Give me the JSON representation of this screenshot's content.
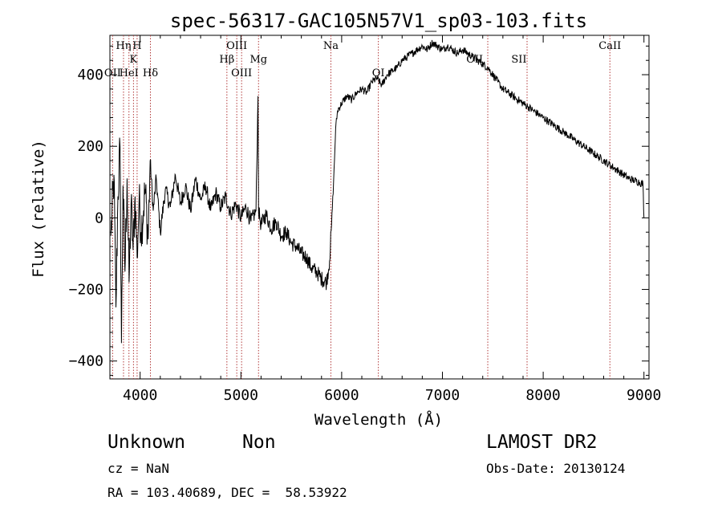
{
  "chart_data": {
    "type": "line",
    "title": "spec-56317-GAC105N57V1_sp03-103.fits",
    "xlabel": "Wavelength (Å)",
    "ylabel": "Flux (relative)",
    "xlim": [
      3700,
      9050
    ],
    "ylim": [
      -450,
      510
    ],
    "xticks": [
      4000,
      5000,
      6000,
      7000,
      8000,
      9000
    ],
    "yticks": [
      -400,
      -200,
      0,
      200,
      400
    ],
    "grid": false,
    "legend": "none",
    "series": [
      {
        "points": [
          [
            3710,
            -50
          ],
          [
            3740,
            120
          ],
          [
            3760,
            -250
          ],
          [
            3780,
            60
          ],
          [
            3800,
            200
          ],
          [
            3815,
            -350
          ],
          [
            3830,
            90
          ],
          [
            3850,
            -150
          ],
          [
            3870,
            110
          ],
          [
            3890,
            -180
          ],
          [
            3910,
            40
          ],
          [
            3930,
            -90
          ],
          [
            3950,
            60
          ],
          [
            3970,
            -110
          ],
          [
            3990,
            50
          ],
          [
            4010,
            -40
          ],
          [
            4050,
            80
          ],
          [
            4080,
            -60
          ],
          [
            4100,
            160
          ],
          [
            4130,
            20
          ],
          [
            4160,
            110
          ],
          [
            4200,
            -40
          ],
          [
            4250,
            80
          ],
          [
            4300,
            30
          ],
          [
            4350,
            120
          ],
          [
            4400,
            40
          ],
          [
            4450,
            90
          ],
          [
            4500,
            20
          ],
          [
            4550,
            110
          ],
          [
            4600,
            50
          ],
          [
            4650,
            90
          ],
          [
            4700,
            20
          ],
          [
            4750,
            70
          ],
          [
            4800,
            30
          ],
          [
            4850,
            60
          ],
          [
            4900,
            10
          ],
          [
            4950,
            40
          ],
          [
            5000,
            0
          ],
          [
            5050,
            30
          ],
          [
            5100,
            -10
          ],
          [
            5150,
            20
          ],
          [
            5170,
            340
          ],
          [
            5175,
            20
          ],
          [
            5200,
            -20
          ],
          [
            5250,
            10
          ],
          [
            5300,
            -30
          ],
          [
            5350,
            -10
          ],
          [
            5400,
            -50
          ],
          [
            5450,
            -40
          ],
          [
            5500,
            -70
          ],
          [
            5550,
            -80
          ],
          [
            5600,
            -100
          ],
          [
            5650,
            -110
          ],
          [
            5700,
            -140
          ],
          [
            5750,
            -150
          ],
          [
            5800,
            -170
          ],
          [
            5850,
            -180
          ],
          [
            5880,
            -120
          ],
          [
            5900,
            -20
          ],
          [
            5920,
            100
          ],
          [
            5940,
            250
          ],
          [
            5960,
            300
          ],
          [
            6000,
            320
          ],
          [
            6050,
            340
          ],
          [
            6100,
            330
          ],
          [
            6150,
            350
          ],
          [
            6200,
            360
          ],
          [
            6250,
            350
          ],
          [
            6300,
            380
          ],
          [
            6350,
            390
          ],
          [
            6400,
            370
          ],
          [
            6450,
            400
          ],
          [
            6500,
            410
          ],
          [
            6550,
            420
          ],
          [
            6600,
            440
          ],
          [
            6650,
            450
          ],
          [
            6700,
            460
          ],
          [
            6750,
            470
          ],
          [
            6800,
            480
          ],
          [
            6850,
            470
          ],
          [
            6900,
            490
          ],
          [
            6950,
            480
          ],
          [
            7000,
            470
          ],
          [
            7050,
            480
          ],
          [
            7100,
            470
          ],
          [
            7150,
            460
          ],
          [
            7200,
            470
          ],
          [
            7250,
            460
          ],
          [
            7300,
            450
          ],
          [
            7350,
            440
          ],
          [
            7400,
            430
          ],
          [
            7450,
            420
          ],
          [
            7500,
            400
          ],
          [
            7550,
            380
          ],
          [
            7600,
            360
          ],
          [
            7650,
            350
          ],
          [
            7700,
            340
          ],
          [
            7750,
            330
          ],
          [
            7800,
            320
          ],
          [
            7850,
            310
          ],
          [
            7900,
            300
          ],
          [
            7950,
            290
          ],
          [
            8000,
            280
          ],
          [
            8050,
            270
          ],
          [
            8100,
            260
          ],
          [
            8150,
            250
          ],
          [
            8200,
            240
          ],
          [
            8250,
            230
          ],
          [
            8300,
            220
          ],
          [
            8350,
            210
          ],
          [
            8400,
            200
          ],
          [
            8450,
            190
          ],
          [
            8500,
            180
          ],
          [
            8550,
            170
          ],
          [
            8600,
            160
          ],
          [
            8650,
            150
          ],
          [
            8700,
            140
          ],
          [
            8750,
            130
          ],
          [
            8800,
            120
          ],
          [
            8850,
            110
          ],
          [
            8900,
            105
          ],
          [
            8950,
            100
          ],
          [
            8990,
            95
          ],
          [
            9000,
            0
          ]
        ]
      }
    ],
    "annotations": [
      {
        "label": "Hη",
        "x": 3835,
        "row": 0
      },
      {
        "label": "H",
        "x": 3970,
        "row": 0
      },
      {
        "label": "K",
        "x": 3934,
        "row": 1
      },
      {
        "label": "OII",
        "x": 3727,
        "row": 2
      },
      {
        "label": "HeI",
        "x": 3889,
        "row": 2
      },
      {
        "label": "Hδ",
        "x": 4102,
        "row": 2
      },
      {
        "label": "OIII",
        "x": 4959,
        "row": 0
      },
      {
        "label": "Hβ",
        "x": 4861,
        "row": 1
      },
      {
        "label": "OIII",
        "x": 5007,
        "row": 2
      },
      {
        "label": "Mg",
        "x": 5175,
        "row": 1
      },
      {
        "label": "Na",
        "x": 5893,
        "row": 0
      },
      {
        "label": "OI",
        "x": 6364,
        "row": 2
      },
      {
        "label": "OII",
        "x": 7320,
        "row": 1
      },
      {
        "label": "SII",
        "x": 7760,
        "row": 1
      },
      {
        "label": "CaII",
        "x": 8662,
        "row": 0
      }
    ],
    "line_markers": [
      3727,
      3835,
      3889,
      3934,
      3970,
      4102,
      4861,
      4959,
      5007,
      5175,
      5893,
      6364,
      7450,
      7840,
      8662
    ]
  },
  "info": {
    "object_class": "Unknown",
    "subclass": "Non",
    "survey": "LAMOST DR2",
    "cz": "cz = NaN",
    "obs_date": "Obs-Date: 20130124",
    "coords": "RA = 103.40689, DEC =  58.53922"
  }
}
